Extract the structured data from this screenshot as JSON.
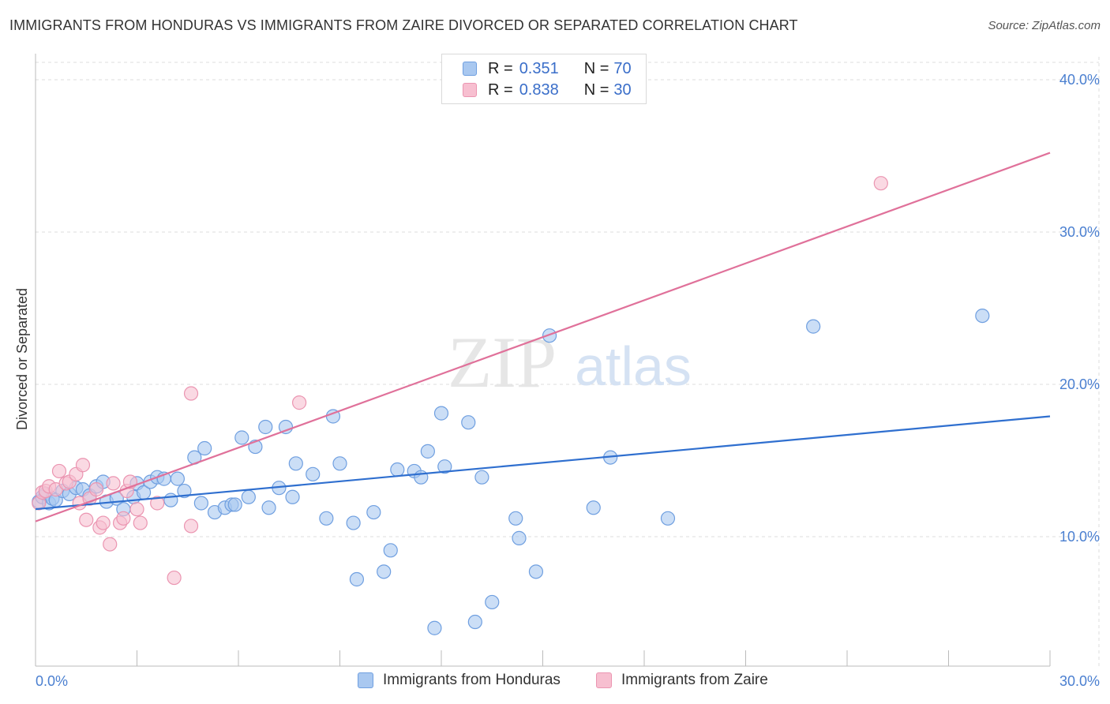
{
  "title": "IMMIGRANTS FROM HONDURAS VS IMMIGRANTS FROM ZAIRE DIVORCED OR SEPARATED CORRELATION CHART",
  "source": "Source: ZipAtlas.com",
  "watermark": {
    "zip": "ZIP",
    "atlas": "atlas"
  },
  "legend": {
    "rows": [
      {
        "r_label": "R = ",
        "r_value": "0.351",
        "n_label": "N = ",
        "n_value": "70"
      },
      {
        "r_label": "R = ",
        "r_value": "0.838",
        "n_label": "N = ",
        "n_value": "30"
      }
    ]
  },
  "colors": {
    "honduras_fill": "#a9c8f0",
    "honduras_stroke": "#6f9fe0",
    "honduras_line": "#2f6fcf",
    "zaire_fill": "#f7bfd0",
    "zaire_stroke": "#eb95b1",
    "zaire_line": "#e0719a",
    "grid": "#dddddd",
    "axis_text": "#4a7fd0"
  },
  "chart_data": {
    "type": "scatter",
    "title": "IMMIGRANTS FROM HONDURAS VS IMMIGRANTS FROM ZAIRE DIVORCED OR SEPARATED CORRELATION CHART",
    "xlabel": "",
    "ylabel": "Divorced or Separated",
    "xlim": [
      0,
      30
    ],
    "ylim": [
      1.5,
      41.5
    ],
    "x_tick_labels": [
      "0.0%",
      "30.0%"
    ],
    "y_ticks": [
      10,
      20,
      30,
      40
    ],
    "y_tick_labels": [
      "10.0%",
      "20.0%",
      "30.0%",
      "40.0%"
    ],
    "grid": true,
    "legend_position": "top-center",
    "series": [
      {
        "name": "Immigrants from Honduras",
        "r": 0.351,
        "n": 70,
        "trendline": {
          "x": [
            0,
            30
          ],
          "y": [
            11.8,
            17.9
          ]
        },
        "points": [
          [
            0.1,
            12.3
          ],
          [
            0.2,
            12.6
          ],
          [
            0.3,
            12.8
          ],
          [
            0.4,
            12.2
          ],
          [
            0.5,
            12.5
          ],
          [
            0.6,
            12.4
          ],
          [
            0.8,
            13.0
          ],
          [
            1.0,
            12.8
          ],
          [
            1.2,
            13.2
          ],
          [
            1.4,
            13.1
          ],
          [
            1.6,
            12.7
          ],
          [
            1.8,
            13.3
          ],
          [
            2.0,
            13.6
          ],
          [
            2.1,
            12.3
          ],
          [
            2.4,
            12.5
          ],
          [
            2.6,
            11.8
          ],
          [
            2.9,
            12.6
          ],
          [
            3.0,
            13.5
          ],
          [
            3.2,
            12.9
          ],
          [
            3.4,
            13.6
          ],
          [
            3.6,
            13.9
          ],
          [
            3.8,
            13.8
          ],
          [
            4.0,
            12.4
          ],
          [
            4.2,
            13.8
          ],
          [
            4.4,
            13.0
          ],
          [
            4.7,
            15.2
          ],
          [
            4.9,
            12.2
          ],
          [
            5.0,
            15.8
          ],
          [
            5.3,
            11.6
          ],
          [
            5.6,
            11.9
          ],
          [
            5.8,
            12.1
          ],
          [
            5.9,
            12.1
          ],
          [
            6.1,
            16.5
          ],
          [
            6.3,
            12.6
          ],
          [
            6.5,
            15.9
          ],
          [
            6.8,
            17.2
          ],
          [
            6.9,
            11.9
          ],
          [
            7.2,
            13.2
          ],
          [
            7.4,
            17.2
          ],
          [
            7.6,
            12.6
          ],
          [
            7.7,
            14.8
          ],
          [
            8.2,
            14.1
          ],
          [
            8.6,
            11.2
          ],
          [
            8.8,
            17.9
          ],
          [
            9.0,
            14.8
          ],
          [
            9.4,
            10.9
          ],
          [
            9.5,
            7.2
          ],
          [
            10.0,
            11.6
          ],
          [
            10.3,
            7.7
          ],
          [
            10.5,
            9.1
          ],
          [
            10.7,
            14.4
          ],
          [
            11.2,
            14.3
          ],
          [
            11.4,
            13.9
          ],
          [
            11.6,
            15.6
          ],
          [
            11.8,
            4.0
          ],
          [
            12.0,
            18.1
          ],
          [
            12.1,
            14.6
          ],
          [
            12.8,
            17.5
          ],
          [
            13.0,
            4.4
          ],
          [
            13.2,
            13.9
          ],
          [
            13.5,
            5.7
          ],
          [
            14.2,
            11.2
          ],
          [
            14.3,
            9.9
          ],
          [
            14.8,
            7.7
          ],
          [
            15.2,
            23.2
          ],
          [
            16.5,
            11.9
          ],
          [
            17.0,
            15.2
          ],
          [
            18.7,
            11.2
          ],
          [
            23.0,
            23.8
          ],
          [
            28.0,
            24.5
          ]
        ]
      },
      {
        "name": "Immigrants from Zaire",
        "r": 0.838,
        "n": 30,
        "trendline": {
          "x": [
            0,
            30
          ],
          "y": [
            11.0,
            35.2
          ]
        },
        "points": [
          [
            0.1,
            12.2
          ],
          [
            0.2,
            12.9
          ],
          [
            0.3,
            13.0
          ],
          [
            0.4,
            13.3
          ],
          [
            0.6,
            13.1
          ],
          [
            0.7,
            14.3
          ],
          [
            0.9,
            13.5
          ],
          [
            1.0,
            13.6
          ],
          [
            1.2,
            14.1
          ],
          [
            1.3,
            12.2
          ],
          [
            1.4,
            14.7
          ],
          [
            1.5,
            11.1
          ],
          [
            1.6,
            12.5
          ],
          [
            1.8,
            13.1
          ],
          [
            1.9,
            10.6
          ],
          [
            2.0,
            10.9
          ],
          [
            2.2,
            9.5
          ],
          [
            2.3,
            13.5
          ],
          [
            2.5,
            10.9
          ],
          [
            2.6,
            11.2
          ],
          [
            2.7,
            13.0
          ],
          [
            2.8,
            13.6
          ],
          [
            3.0,
            11.8
          ],
          [
            3.1,
            10.9
          ],
          [
            3.6,
            12.2
          ],
          [
            4.1,
            7.3
          ],
          [
            4.6,
            10.7
          ],
          [
            4.6,
            19.4
          ],
          [
            7.8,
            18.8
          ],
          [
            25.0,
            33.2
          ]
        ]
      }
    ]
  },
  "bottom_legend": [
    {
      "label": "Immigrants from Honduras"
    },
    {
      "label": "Immigrants from Zaire"
    }
  ]
}
